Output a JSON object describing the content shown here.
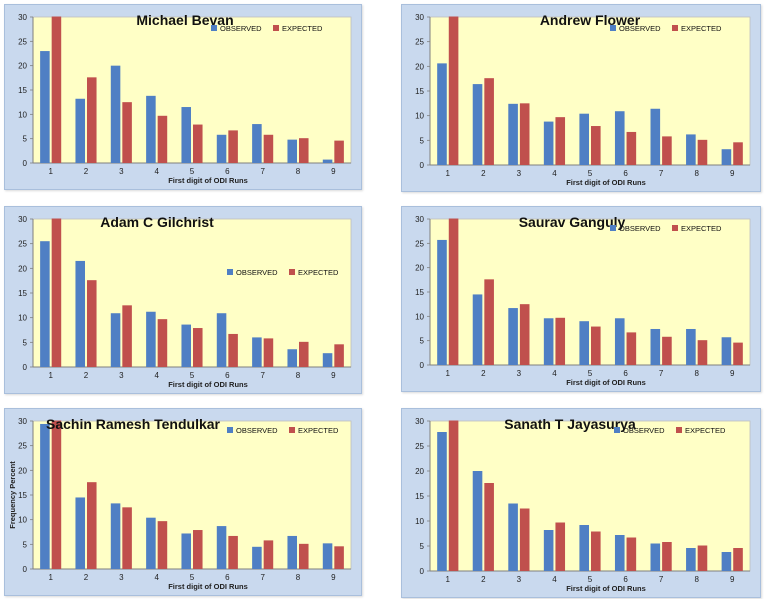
{
  "colors": {
    "observed": "#4f7fc4",
    "expected": "#c0504d",
    "plot_bg": "#ffffc6",
    "frame": "#c9d9ee",
    "axis": "#7f7f7f"
  },
  "chart_data": [
    {
      "type": "bar",
      "title": "Michael Bevan",
      "xlabel": "First digit of ODI Runs",
      "ylabel": "",
      "ylim": [
        0,
        30
      ],
      "yticks": [
        0,
        5,
        10,
        15,
        20,
        25,
        30
      ],
      "legend": "top-right",
      "categories": [
        "1",
        "2",
        "3",
        "4",
        "5",
        "6",
        "7",
        "8",
        "9"
      ],
      "series": [
        {
          "name": "OBSERVED",
          "values": [
            23,
            13.2,
            20,
            13.8,
            11.5,
            5.8,
            8,
            4.8,
            0.7
          ]
        },
        {
          "name": "EXPECTED",
          "values": [
            30.1,
            17.6,
            12.5,
            9.7,
            7.9,
            6.7,
            5.8,
            5.1,
            4.6
          ]
        }
      ]
    },
    {
      "type": "bar",
      "title": "Andrew Flower",
      "xlabel": "First digit of ODI Runs",
      "ylabel": "",
      "ylim": [
        0,
        30
      ],
      "yticks": [
        0,
        5,
        10,
        15,
        20,
        25,
        30
      ],
      "legend": "top-right",
      "categories": [
        "1",
        "2",
        "3",
        "4",
        "5",
        "6",
        "7",
        "8",
        "9"
      ],
      "series": [
        {
          "name": "OBSERVED",
          "values": [
            20.6,
            16.4,
            12.4,
            8.8,
            10.4,
            10.9,
            11.4,
            6.2,
            3.2
          ]
        },
        {
          "name": "EXPECTED",
          "values": [
            30.1,
            17.6,
            12.5,
            9.7,
            7.9,
            6.7,
            5.8,
            5.1,
            4.6
          ]
        }
      ]
    },
    {
      "type": "bar",
      "title": "Adam C Gilchrist",
      "xlabel": "First digit of ODI Runs",
      "ylabel": "",
      "ylim": [
        0,
        30
      ],
      "yticks": [
        0,
        5,
        10,
        15,
        20,
        25,
        30
      ],
      "legend": "middle-right",
      "categories": [
        "1",
        "2",
        "3",
        "4",
        "5",
        "6",
        "7",
        "8",
        "9"
      ],
      "series": [
        {
          "name": "OBSERVED",
          "values": [
            25.5,
            21.5,
            10.9,
            11.2,
            8.6,
            10.9,
            6,
            3.6,
            2.8
          ]
        },
        {
          "name": "EXPECTED",
          "values": [
            30.1,
            17.6,
            12.5,
            9.7,
            7.9,
            6.7,
            5.8,
            5.1,
            4.6
          ]
        }
      ]
    },
    {
      "type": "bar",
      "title": "Saurav Ganguly",
      "xlabel": "First digit of ODI Runs",
      "ylabel": "",
      "ylim": [
        0,
        30
      ],
      "yticks": [
        0,
        5,
        10,
        15,
        20,
        25,
        30
      ],
      "legend": "top-right",
      "categories": [
        "1",
        "2",
        "3",
        "4",
        "5",
        "6",
        "7",
        "8",
        "9"
      ],
      "series": [
        {
          "name": "OBSERVED",
          "values": [
            25.7,
            14.5,
            11.7,
            9.6,
            9,
            9.6,
            7.4,
            7.4,
            5.7
          ]
        },
        {
          "name": "EXPECTED",
          "values": [
            30.1,
            17.6,
            12.5,
            9.7,
            7.9,
            6.7,
            5.8,
            5.1,
            4.6
          ]
        }
      ]
    },
    {
      "type": "bar",
      "title": "Sachin Ramesh Tendulkar",
      "xlabel": "First digit of ODI Runs",
      "ylabel": "Frequency Percent",
      "ylim": [
        0,
        30
      ],
      "yticks": [
        0,
        5,
        10,
        15,
        20,
        25,
        30
      ],
      "legend": "top-right",
      "categories": [
        "1",
        "2",
        "3",
        "4",
        "5",
        "6",
        "7",
        "8",
        "9"
      ],
      "series": [
        {
          "name": "OBSERVED",
          "values": [
            29.4,
            14.5,
            13.3,
            10.4,
            7.2,
            8.7,
            4.5,
            6.7,
            5.2
          ]
        },
        {
          "name": "EXPECTED",
          "values": [
            30.1,
            17.6,
            12.5,
            9.7,
            7.9,
            6.7,
            5.8,
            5.1,
            4.6
          ]
        }
      ]
    },
    {
      "type": "bar",
      "title": "Sanath T Jayasurya",
      "xlabel": "First digit of ODI Runs",
      "ylabel": "",
      "ylim": [
        0,
        30
      ],
      "yticks": [
        0,
        5,
        10,
        15,
        20,
        25,
        30
      ],
      "legend": "top-right",
      "categories": [
        "1",
        "2",
        "3",
        "4",
        "5",
        "6",
        "7",
        "8",
        "9"
      ],
      "series": [
        {
          "name": "OBSERVED",
          "values": [
            27.8,
            20,
            13.5,
            8.2,
            9.2,
            7.2,
            5.5,
            4.6,
            3.8
          ]
        },
        {
          "name": "EXPECTED",
          "values": [
            30.1,
            17.6,
            12.5,
            9.7,
            7.9,
            6.7,
            5.8,
            5.1,
            4.6
          ]
        }
      ]
    }
  ]
}
